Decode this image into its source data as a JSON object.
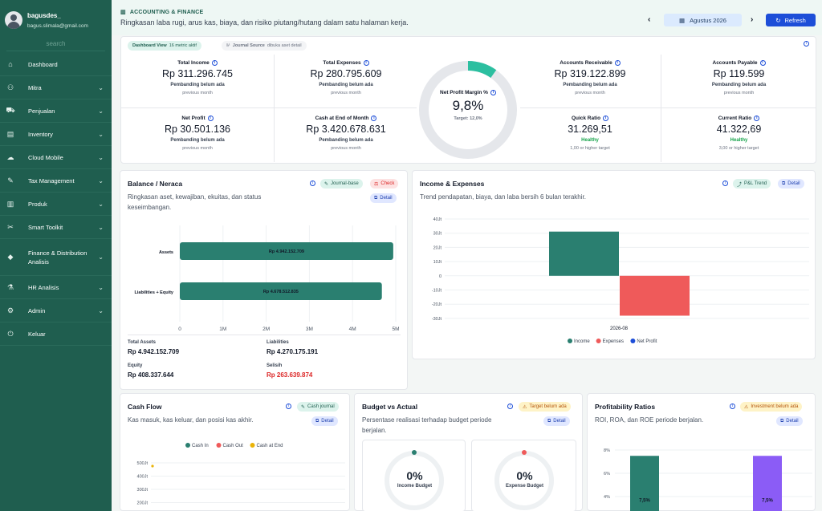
{
  "sidebar": {
    "username": "bagusdes_",
    "email": "bagus.slimala@gmail.com",
    "search_placeholder": "search",
    "items": [
      {
        "label": "Dashboard",
        "icon": "dashboard-icon",
        "chevron": false
      },
      {
        "label": "Mitra",
        "icon": "users-icon",
        "chevron": true
      },
      {
        "label": "Penjualan",
        "icon": "cart-icon",
        "chevron": true
      },
      {
        "label": "Inventory",
        "icon": "warehouse-icon",
        "chevron": true
      },
      {
        "label": "Cloud Mobile",
        "icon": "cloud-icon",
        "chevron": true
      },
      {
        "label": "Tax Management",
        "icon": "leaf-icon",
        "chevron": true
      },
      {
        "label": "Produk",
        "icon": "barcode-icon",
        "chevron": true
      },
      {
        "label": "Smart Toolkit",
        "icon": "tools-icon",
        "chevron": true
      },
      {
        "label": "Finance & Distribution Analisis",
        "icon": "graduation-icon",
        "chevron": true
      },
      {
        "label": "HR Analisis",
        "icon": "flask-icon",
        "chevron": true
      },
      {
        "label": "Admin",
        "icon": "gear-icon",
        "chevron": true
      },
      {
        "label": "Keluar",
        "icon": "power-icon",
        "chevron": false
      }
    ]
  },
  "header": {
    "breadcrumb": "ACCOUNTING & FINANCE",
    "subtitle": "Ringkasan laba rugi, arus kas, biaya, dan risiko piutang/hutang dalam satu halaman kerja.",
    "prev_arrow": "‹",
    "next_arrow": "›",
    "period": "Agustus 2026",
    "refresh_label": "Refresh"
  },
  "kpi": {
    "dashboard_view_label": "Dashboard View",
    "dashboard_view_value": "16 metric aktif",
    "journal_source_label": "Journal Source",
    "journal_source_value": "dibuka aset detail",
    "total_income": {
      "title": "Total Income",
      "value": "Rp 311.296.745",
      "note": "Pembanding belum ada",
      "sub": "previous month"
    },
    "total_expenses": {
      "title": "Total Expenses",
      "value": "Rp 280.795.609",
      "note": "Pembanding belum ada",
      "sub": "previous month"
    },
    "net_profit": {
      "title": "Net Profit",
      "value": "Rp 30.501.136",
      "note": "Pembanding belum ada",
      "sub": "previous month"
    },
    "cash_end": {
      "title": "Cash at End of Month",
      "value": "Rp 3.420.678.631",
      "note": "Pembanding belum ada",
      "sub": "previous month"
    },
    "margin": {
      "title": "Net Profit Margin %",
      "value": "9,8%",
      "target": "Target: 12,0%",
      "fraction": 0.098
    },
    "ar": {
      "title": "Accounts Receivable",
      "value": "Rp 319.122.899",
      "note": "Pembanding belum ada",
      "sub": "previous month"
    },
    "ap": {
      "title": "Accounts Payable",
      "value": "Rp 119.599",
      "note": "Pembanding belum ada",
      "sub": "previous month"
    },
    "quick_ratio": {
      "title": "Quick Ratio",
      "value": "31.269,51",
      "note": "Healthy",
      "sub": "1,00 or higher target"
    },
    "current_ratio": {
      "title": "Current Ratio",
      "value": "41.322,69",
      "note": "Healthy",
      "sub": "3,00 or higher target"
    }
  },
  "balance": {
    "title": "Balance / Neraca",
    "desc": "Ringkasan aset, kewajiban, ekuitas, dan status keseimbangan.",
    "tag_journal": "Journal-base",
    "tag_check": "Check",
    "detail": "Detail",
    "total_assets_label": "Total Assets",
    "total_assets": "Rp 4.942.152.709",
    "liabilities_label": "Liabilities",
    "liabilities": "Rp 4.270.175.191",
    "equity_label": "Equity",
    "equity": "Rp 408.337.644",
    "selisih_label": "Selisih",
    "selisih": "Rp 263.639.874"
  },
  "income_expenses": {
    "title": "Income & Expenses",
    "desc": "Trend pendapatan, biaya, dan laba bersih 6 bulan terakhir.",
    "tag_trend": "P&L Trend",
    "detail": "Detail"
  },
  "cashflow": {
    "title": "Cash Flow",
    "desc": "Kas masuk, kas keluar, dan posisi kas akhir.",
    "tag": "Cash journal",
    "detail": "Detail"
  },
  "budget": {
    "title": "Budget vs Actual",
    "desc": "Persentase realisasi terhadap budget periode berjalan.",
    "tag": "Target belum ada",
    "detail": "Detail",
    "income_value": "0%",
    "income_label": "Income Budget",
    "expense_value": "0%",
    "expense_label": "Expense Budget"
  },
  "profitability": {
    "title": "Profitability Ratios",
    "desc": "ROI, ROA, dan ROE periode berjalan.",
    "tag": "Investment belum ada",
    "detail": "Detail"
  },
  "colors": {
    "primary": "#1f5e4f",
    "teal": "#2a7f70",
    "red": "#ef5a5a",
    "blue": "#1d4ed8",
    "yellow": "#eab308",
    "purple": "#8b5cf6"
  },
  "chart_data": [
    {
      "type": "bar",
      "orientation": "horizontal",
      "categories": [
        "Assets",
        "Liabilities + Equity"
      ],
      "values": [
        4942152709,
        4678512835
      ],
      "data_labels": [
        "Rp 4.942.152.709",
        "Rp 4.678.512.835"
      ],
      "xlim": [
        0,
        5000000000
      ],
      "x_tick_labels": [
        "0",
        "1M",
        "2M",
        "3M",
        "4M",
        "5M"
      ],
      "grid": true
    },
    {
      "type": "bar",
      "categories": [
        "2026-08"
      ],
      "series": [
        {
          "name": "Income",
          "values": [
            311296745
          ],
          "color": "#2a7f70"
        },
        {
          "name": "Expenses",
          "values": [
            -280795609
          ],
          "color": "#ef5a5a"
        },
        {
          "name": "Net Profit",
          "values": [
            30501136
          ],
          "color": "#1d4ed8"
        }
      ],
      "ylim": [
        -400000000,
        400000000
      ],
      "y_tick_labels": [
        "40Jt",
        "30Jt",
        "20Jt",
        "10Jt",
        "0",
        "-10Jt",
        "-20Jt",
        "-30Jt"
      ],
      "legend": "bottom",
      "grid": true
    },
    {
      "type": "line",
      "series": [
        {
          "name": "Cash In",
          "color": "#2a7f70"
        },
        {
          "name": "Cash Out",
          "color": "#ef5a5a"
        },
        {
          "name": "Cash at End",
          "color": "#eab308",
          "values": [
            3420678631
          ]
        }
      ],
      "y_tick_labels": [
        "500Jt",
        "400Jt",
        "300Jt",
        "200Jt"
      ],
      "legend": "top"
    },
    {
      "type": "bar",
      "series": [
        {
          "values": [
            7.5
          ],
          "color": "#2a7f70"
        },
        {
          "values": [
            7.5
          ],
          "color": "#8b5cf6"
        }
      ],
      "data_labels": [
        "7,5%",
        "7,5%"
      ],
      "y_tick_labels": [
        "8%",
        "6%",
        "4%"
      ]
    }
  ]
}
